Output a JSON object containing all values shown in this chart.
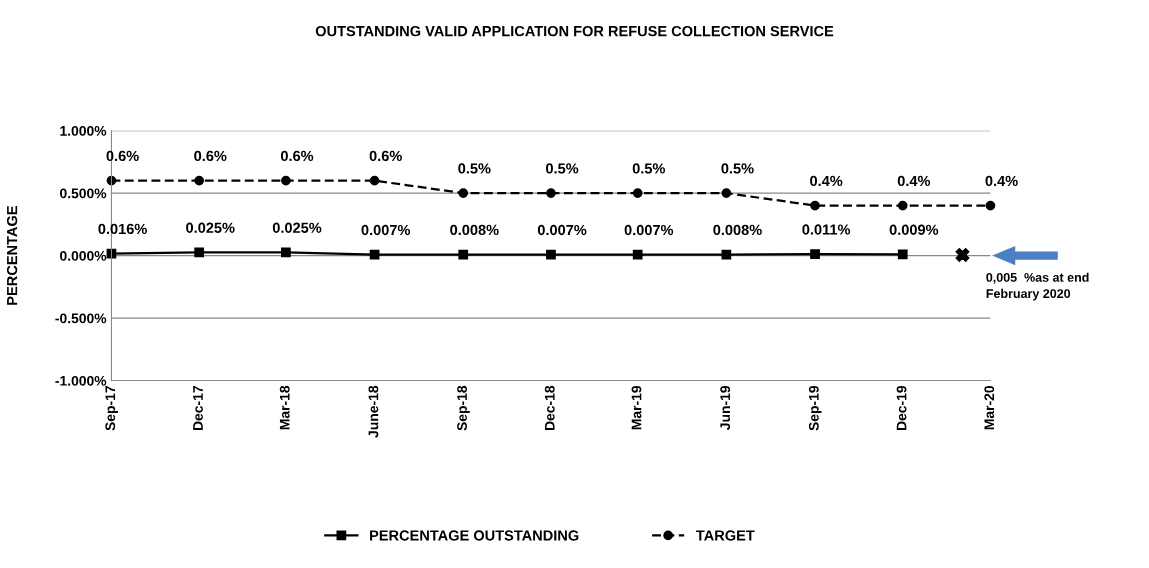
{
  "chart_data": {
    "type": "line",
    "title": "OUTSTANDING VALID APPLICATION FOR REFUSE COLLECTION SERVICE",
    "ylabel": "PERCENTAGE",
    "x": [
      "2017-09",
      "2017-12",
      "2018-03",
      "2018-06",
      "2018-09",
      "2018-12",
      "2019-03",
      "2019-06",
      "2019-09",
      "2019-12",
      "2020-03"
    ],
    "series": [
      {
        "name": "PERCENTAGE OUTSTANDING",
        "color": "#000000",
        "marker": "square",
        "line_style": "solid",
        "values": [
          0.016,
          0.025,
          0.025,
          0.007,
          0.008,
          0.007,
          0.007,
          0.008,
          0.011,
          0.009,
          null
        ],
        "value_labels": [
          "0.016%",
          "0.025%",
          "0.025%",
          "0.007%",
          "0.008%",
          "0.007%",
          "0.007%",
          "0.008%",
          "0.011%",
          "0.009%",
          null
        ]
      },
      {
        "name": "TARGET",
        "color": "#000000",
        "marker": "circle",
        "line_style": "dashed",
        "values": [
          0.6,
          0.6,
          0.6,
          0.6,
          0.5,
          0.5,
          0.5,
          0.5,
          0.4,
          0.4,
          0.4
        ],
        "value_labels": [
          "0.6%",
          "0.6%",
          "0.6%",
          "0.6%",
          "0.5%",
          "0.5%",
          "0.5%",
          "0.5%",
          "0.4%",
          "0.4%",
          "0.4%"
        ]
      },
      {
        "type": "scatter",
        "color": "#000000",
        "marker": "cross",
        "x": [
          "2020-02"
        ],
        "values": [
          0.005
        ]
      }
    ],
    "annotations": [
      "0,005  %as at end\nFebruary 2020"
    ],
    "xlim": [
      "2017-09",
      "2020-03"
    ],
    "xticks": [
      {
        "value": "2017-09",
        "label": "Sep-17"
      },
      {
        "value": "2017-12",
        "label": "Dec-17"
      },
      {
        "value": "2018-03",
        "label": "Mar-18"
      },
      {
        "value": "2018-06",
        "label": "June-18"
      },
      {
        "value": "2018-09",
        "label": "Sep-18"
      },
      {
        "value": "2018-12",
        "label": "Dec-18"
      },
      {
        "value": "2019-03",
        "label": "Mar-19"
      },
      {
        "value": "2019-06",
        "label": "Jun-19"
      },
      {
        "value": "2019-09",
        "label": "Sep-19"
      },
      {
        "value": "2019-12",
        "label": "Dec-19"
      },
      {
        "value": "2020-03",
        "label": "Mar-20"
      }
    ],
    "ylim": [
      -1,
      1
    ],
    "yticks": [
      {
        "value": -1,
        "label": "-1.000%"
      },
      {
        "value": -0.5,
        "label": "-0.500%"
      },
      {
        "value": 0,
        "label": "0.000%"
      },
      {
        "value": 0.5,
        "label": "0.500%"
      },
      {
        "value": 1,
        "label": "1.000%"
      }
    ],
    "grid": "y",
    "legend": "bottom"
  }
}
